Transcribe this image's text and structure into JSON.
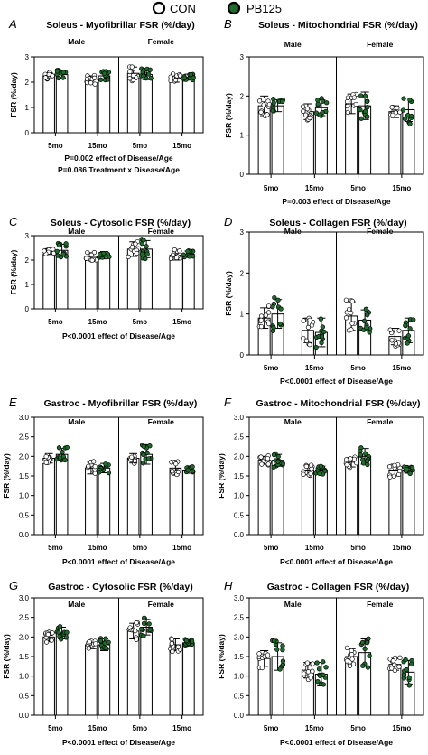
{
  "legend": {
    "items": [
      {
        "label": "CON",
        "color": "#ffffff"
      },
      {
        "label": "PB125",
        "color": "#1f6b2d"
      }
    ]
  },
  "colors": {
    "con_fill": "#ffffff",
    "pb_fill": "#1f6b2d",
    "axis": "#000000"
  },
  "chart_data": [
    {
      "letter": "A",
      "type": "bar",
      "title": "Soleus - Myofibrillar FSR (%/day)",
      "ylabel": "FSR (%/day)",
      "ylim": [
        0,
        3
      ],
      "yticks": [
        0,
        1,
        2,
        3
      ],
      "ytick_labels": [
        "0",
        "1",
        "2",
        "3"
      ],
      "groups": [
        "Male",
        "Female"
      ],
      "categories": [
        "5mo",
        "15mo",
        "5mo",
        "15mo"
      ],
      "series": [
        {
          "name": "CON",
          "values": [
            2.25,
            2.1,
            2.35,
            2.15
          ],
          "errors": [
            0.12,
            0.15,
            0.25,
            0.15
          ]
        },
        {
          "name": "PB125",
          "values": [
            2.3,
            2.25,
            2.3,
            2.2
          ],
          "errors": [
            0.15,
            0.15,
            0.2,
            0.12
          ]
        }
      ],
      "stats": [
        "P=0.002 effect of Disease/Age",
        "P=0.086 Treatment x Disease/Age"
      ]
    },
    {
      "letter": "B",
      "type": "bar",
      "title": "Soleus - Mitochondrial FSR (%/day)",
      "ylabel": "FSR (%/day)",
      "ylim": [
        0,
        3
      ],
      "yticks": [
        0,
        1,
        2,
        3
      ],
      "ytick_labels": [
        "0",
        "1",
        "2",
        "3"
      ],
      "groups": [
        "Male",
        "Female"
      ],
      "categories": [
        "5mo",
        "15mo",
        "5mo",
        "15mo"
      ],
      "series": [
        {
          "name": "CON",
          "values": [
            1.75,
            1.6,
            1.8,
            1.6
          ],
          "errors": [
            0.25,
            0.2,
            0.25,
            0.15
          ]
        },
        {
          "name": "PB125",
          "values": [
            1.75,
            1.7,
            1.75,
            1.65
          ],
          "errors": [
            0.15,
            0.2,
            0.35,
            0.3
          ]
        }
      ],
      "stats": [
        "P=0.003 effect of Disease/Age"
      ]
    },
    {
      "letter": "C",
      "type": "bar",
      "title": "Soleus - Cytosolic FSR (%/day)",
      "ylabel": "FSR (%/day)",
      "ylim": [
        0,
        3
      ],
      "yticks": [
        0,
        1,
        2,
        3
      ],
      "ytick_labels": [
        "0",
        "1",
        "2",
        "3"
      ],
      "groups": [
        "Male",
        "Female"
      ],
      "categories": [
        "5mo",
        "15mo",
        "5mo",
        "15mo"
      ],
      "series": [
        {
          "name": "CON",
          "values": [
            2.35,
            2.15,
            2.45,
            2.2
          ],
          "errors": [
            0.12,
            0.15,
            0.3,
            0.2
          ]
        },
        {
          "name": "PB125",
          "values": [
            2.4,
            2.2,
            2.45,
            2.25
          ],
          "errors": [
            0.25,
            0.15,
            0.35,
            0.12
          ]
        }
      ],
      "stats": [
        "P<0.0001 effect of Disease/Age"
      ]
    },
    {
      "letter": "D",
      "type": "bar",
      "title": "Soleus - Collagen FSR (%/day)",
      "ylabel": "FSR (%/day)",
      "ylim": [
        0,
        3
      ],
      "yticks": [
        0,
        1,
        2,
        3
      ],
      "ytick_labels": [
        "0",
        "1",
        "2",
        "3"
      ],
      "groups": [
        "Male",
        "Female"
      ],
      "categories": [
        "5mo",
        "15mo",
        "5mo",
        "15mo"
      ],
      "series": [
        {
          "name": "CON",
          "values": [
            0.9,
            0.6,
            0.95,
            0.45
          ],
          "errors": [
            0.25,
            0.3,
            0.35,
            0.2
          ]
        },
        {
          "name": "PB125",
          "values": [
            1.0,
            0.55,
            0.85,
            0.6
          ],
          "errors": [
            0.35,
            0.35,
            0.25,
            0.3
          ]
        }
      ],
      "stats": [
        "P<0.0001 effect of Disease/Age"
      ]
    },
    {
      "letter": "E",
      "type": "bar",
      "title": "Gastroc - Myofibrillar FSR (%/day)",
      "ylabel": "FSR (%/day)",
      "ylim": [
        0,
        3
      ],
      "yticks": [
        0,
        0.5,
        1,
        1.5,
        2,
        2.5,
        3
      ],
      "ytick_labels": [
        "0.0",
        "0.5",
        "1.0",
        "1.5",
        "2.0",
        "2.5",
        "3.0"
      ],
      "groups": [
        "Male",
        "Female"
      ],
      "categories": [
        "5mo",
        "15mo",
        "5mo",
        "15mo"
      ],
      "series": [
        {
          "name": "CON",
          "values": [
            1.95,
            1.7,
            1.95,
            1.7
          ],
          "errors": [
            0.12,
            0.15,
            0.12,
            0.18
          ]
        },
        {
          "name": "PB125",
          "values": [
            2.05,
            1.7,
            2.05,
            1.65
          ],
          "errors": [
            0.15,
            0.12,
            0.25,
            0.08
          ]
        }
      ],
      "stats": [
        "P<0.0001 effect of Disease/Age"
      ]
    },
    {
      "letter": "F",
      "type": "bar",
      "title": "Gastroc - Mitochondrial FSR (%/day)",
      "ylabel": "FSR (%/day)",
      "ylim": [
        0,
        3
      ],
      "yticks": [
        0,
        0.5,
        1,
        1.5,
        2,
        2.5,
        3
      ],
      "ytick_labels": [
        "0.0",
        "0.5",
        "1.0",
        "1.5",
        "2.0",
        "2.5",
        "3.0"
      ],
      "groups": [
        "Male",
        "Female"
      ],
      "categories": [
        "5mo",
        "15mo",
        "5mo",
        "15mo"
      ],
      "series": [
        {
          "name": "CON",
          "values": [
            1.9,
            1.65,
            1.85,
            1.65
          ],
          "errors": [
            0.1,
            0.12,
            0.12,
            0.15
          ]
        },
        {
          "name": "PB125",
          "values": [
            1.9,
            1.65,
            2.0,
            1.65
          ],
          "errors": [
            0.15,
            0.1,
            0.2,
            0.08
          ]
        }
      ],
      "stats": [
        "P<0.0001 effect of Disease/Age"
      ]
    },
    {
      "letter": "G",
      "type": "bar",
      "title": "Gastroc - Cytosolic FSR (%/day)",
      "ylabel": "FSR (%/day)",
      "ylim": [
        0,
        3
      ],
      "yticks": [
        0,
        0.5,
        1,
        1.5,
        2,
        2.5,
        3
      ],
      "ytick_labels": [
        "0.0",
        "0.5",
        "1.0",
        "1.5",
        "2.0",
        "2.5",
        "3.0"
      ],
      "groups": [
        "Male",
        "Female"
      ],
      "categories": [
        "5mo",
        "15mo",
        "5mo",
        "15mo"
      ],
      "series": [
        {
          "name": "CON",
          "values": [
            2.0,
            1.8,
            2.15,
            1.8
          ],
          "errors": [
            0.12,
            0.1,
            0.2,
            0.15
          ]
        },
        {
          "name": "PB125",
          "values": [
            2.1,
            1.8,
            2.25,
            1.85
          ],
          "errors": [
            0.15,
            0.15,
            0.2,
            0.08
          ]
        }
      ],
      "stats": [
        "P<0.0001 effect of Disease/Age"
      ]
    },
    {
      "letter": "H",
      "type": "bar",
      "title": "Gastroc - Collagen FSR (%/day)",
      "ylabel": "FSR (%/day)",
      "ylim": [
        0,
        3
      ],
      "yticks": [
        0,
        0.5,
        1,
        1.5,
        2,
        2.5,
        3
      ],
      "ytick_labels": [
        "0.0",
        "0.5",
        "1.0",
        "1.5",
        "2.0",
        "2.5",
        "3.0"
      ],
      "groups": [
        "Male",
        "Female"
      ],
      "categories": [
        "5mo",
        "15mo",
        "5mo",
        "15mo"
      ],
      "series": [
        {
          "name": "CON",
          "values": [
            1.45,
            1.15,
            1.5,
            1.3
          ],
          "errors": [
            0.2,
            0.2,
            0.2,
            0.15
          ]
        },
        {
          "name": "PB125",
          "values": [
            1.5,
            1.05,
            1.6,
            1.1
          ],
          "errors": [
            0.35,
            0.3,
            0.35,
            0.3
          ]
        }
      ],
      "stats": [
        "P<0.0001 effect of Disease/Age"
      ]
    }
  ]
}
